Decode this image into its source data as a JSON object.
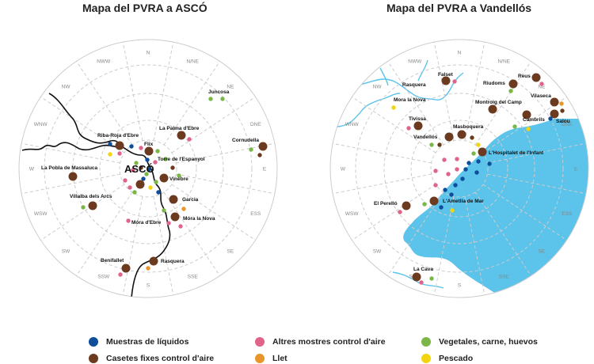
{
  "maps": [
    {
      "title": "Mapa del PVRA a ASCÓ",
      "center_label": "ASCÓ",
      "directions": [
        "N",
        "N/NE",
        "NE",
        "DNE",
        "E",
        "ESS",
        "SE",
        "SSE",
        "S",
        "SSW",
        "SW",
        "WSW",
        "W",
        "WNW",
        "NW",
        "NWW"
      ],
      "places": [
        "Juncosa",
        "Cornudella",
        "La Palma d'Ebre",
        "Riba-Roja d'Ebre",
        "Flix",
        "Torre de l'Espanyol",
        "La Pobla de Massaluca",
        "Vinebre",
        "Villalba dels Arcs",
        "Garcia",
        "Móra d'Ebre",
        "Móra la Nova",
        "Benifallet",
        "Rasquera"
      ]
    },
    {
      "title": "Mapa del PVRA a Vandellós",
      "directions": [
        "N",
        "N/NE",
        "NE",
        "DNE",
        "E",
        "ESS",
        "SE",
        "SSE",
        "S",
        "SSW",
        "SW",
        "WSW",
        "W",
        "WNW",
        "NW",
        "NWW"
      ],
      "places": [
        "Falset",
        "Rasquera",
        "Reus",
        "Riudoms",
        "Vilaseca",
        "Mora la Nova",
        "Montroig del Camp",
        "Salou",
        "Cambrils",
        "Tivissa",
        "Masboquera",
        "Vandellós",
        "L'Hospitalet de l'Infant",
        "L'Ametlla de Mar",
        "El Perelló",
        "La Cava"
      ]
    }
  ],
  "legend": [
    {
      "label": "Muestras de líquidos",
      "color": "#0d4d9a"
    },
    {
      "label": "Altres mostres control d'aire",
      "color": "#e0648a"
    },
    {
      "label": "Vegetales, carne, huevos",
      "color": "#7ab648"
    },
    {
      "label": "Casetes fixes control d'aire",
      "color": "#6b3a1f"
    },
    {
      "label": "Llet",
      "color": "#e8962a"
    },
    {
      "label": "Pescado",
      "color": "#f2d40f"
    }
  ],
  "colors": {
    "sea": "#5cc3ea",
    "ring": "#cccccc",
    "river": "#5cc3ea",
    "border": "#111111"
  }
}
